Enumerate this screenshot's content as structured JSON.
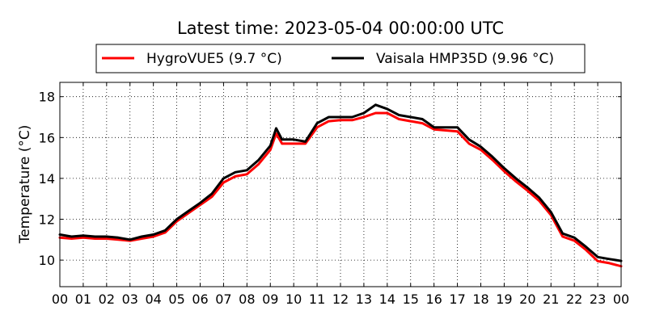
{
  "chart_data": {
    "type": "line",
    "title": "Latest time: 2023-05-04 00:00:00 UTC",
    "xlabel": "",
    "ylabel": "Temperature (°C)",
    "xlim": [
      0,
      24
    ],
    "ylim": [
      8.7,
      18.7
    ],
    "x_ticks": [
      "00",
      "01",
      "02",
      "03",
      "04",
      "05",
      "06",
      "07",
      "08",
      "09",
      "10",
      "11",
      "12",
      "13",
      "14",
      "15",
      "16",
      "17",
      "18",
      "19",
      "20",
      "21",
      "22",
      "23",
      "00"
    ],
    "y_ticks": [
      10,
      12,
      14,
      16,
      18
    ],
    "grid": true,
    "legend_position": "top-center",
    "x": [
      0,
      0.5,
      1,
      1.5,
      2,
      2.5,
      3,
      3.5,
      4,
      4.5,
      5,
      5.5,
      6,
      6.5,
      7,
      7.5,
      8,
      8.5,
      9,
      9.25,
      9.5,
      10,
      10.5,
      11,
      11.5,
      12,
      12.5,
      13,
      13.5,
      14,
      14.5,
      15,
      15.5,
      16,
      16.5,
      17,
      17.5,
      18,
      18.5,
      19,
      19.5,
      20,
      20.5,
      21,
      21.5,
      22,
      22.5,
      23,
      23.5,
      24
    ],
    "series": [
      {
        "name": "HygroVUE5 (9.7 °C)",
        "color": "#ff0000",
        "values": [
          11.1,
          11.05,
          11.1,
          11.05,
          11.05,
          11.0,
          10.95,
          11.05,
          11.15,
          11.35,
          11.9,
          12.3,
          12.7,
          13.1,
          13.8,
          14.1,
          14.2,
          14.7,
          15.4,
          16.2,
          15.7,
          15.7,
          15.7,
          16.5,
          16.8,
          16.85,
          16.85,
          17.0,
          17.2,
          17.2,
          16.9,
          16.8,
          16.7,
          16.4,
          16.35,
          16.3,
          15.7,
          15.4,
          14.9,
          14.35,
          13.85,
          13.4,
          12.9,
          12.2,
          11.15,
          10.95,
          10.5,
          9.95,
          9.85,
          9.7
        ]
      },
      {
        "name": "Vaisala HMP35D (9.96 °C)",
        "color": "#000000",
        "values": [
          11.25,
          11.15,
          11.2,
          11.15,
          11.15,
          11.1,
          11.0,
          11.15,
          11.25,
          11.45,
          12.0,
          12.4,
          12.8,
          13.25,
          14.0,
          14.3,
          14.4,
          14.9,
          15.6,
          16.45,
          15.9,
          15.9,
          15.8,
          16.7,
          17.0,
          17.0,
          17.0,
          17.2,
          17.6,
          17.4,
          17.1,
          17.0,
          16.9,
          16.5,
          16.5,
          16.5,
          15.9,
          15.55,
          15.05,
          14.5,
          14.0,
          13.55,
          13.05,
          12.35,
          11.3,
          11.1,
          10.65,
          10.15,
          10.05,
          9.96
        ]
      }
    ]
  }
}
